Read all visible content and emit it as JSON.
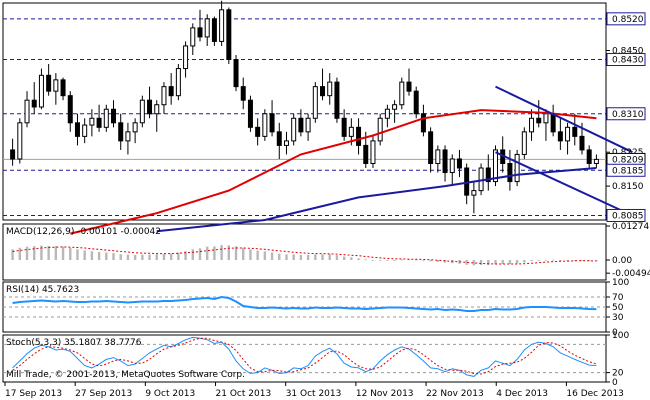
{
  "chart_data": [
    {
      "type": "candlestick",
      "price_labels": [
        "0.8520",
        "0.8450",
        "0.8430",
        "0.8310",
        "0.8225",
        "0.8209",
        "0.8185",
        "0.8150",
        "0.8085"
      ],
      "level_lines": [
        0.852,
        0.843,
        0.831,
        0.8185,
        0.8085
      ],
      "current_price": 0.8209,
      "ylim": [
        0.8075,
        0.8555
      ],
      "date_labels": [
        "17 Sep 2013",
        "27 Sep 2013",
        "9 Oct 2013",
        "21 Oct 2013",
        "31 Oct 2013",
        "12 Nov 2013",
        "22 Nov 2013",
        "4 Dec 2013",
        "16 Dec 2013"
      ],
      "candles": [
        [
          0.823,
          0.8255,
          0.8195,
          0.821
        ],
        [
          0.821,
          0.83,
          0.82,
          0.829
        ],
        [
          0.829,
          0.836,
          0.828,
          0.834
        ],
        [
          0.834,
          0.838,
          0.831,
          0.8325
        ],
        [
          0.8325,
          0.841,
          0.832,
          0.8395
        ],
        [
          0.8395,
          0.842,
          0.835,
          0.836
        ],
        [
          0.836,
          0.84,
          0.833,
          0.8385
        ],
        [
          0.8385,
          0.839,
          0.834,
          0.835
        ],
        [
          0.835,
          0.836,
          0.827,
          0.829
        ],
        [
          0.829,
          0.831,
          0.824,
          0.826
        ],
        [
          0.826,
          0.83,
          0.8245,
          0.8285
        ],
        [
          0.8285,
          0.832,
          0.826,
          0.83
        ],
        [
          0.83,
          0.833,
          0.827,
          0.828
        ],
        [
          0.828,
          0.833,
          0.827,
          0.832
        ],
        [
          0.832,
          0.834,
          0.828,
          0.829
        ],
        [
          0.829,
          0.831,
          0.823,
          0.825
        ],
        [
          0.825,
          0.829,
          0.822,
          0.827
        ],
        [
          0.827,
          0.83,
          0.8245,
          0.829
        ],
        [
          0.829,
          0.835,
          0.828,
          0.834
        ],
        [
          0.834,
          0.837,
          0.83,
          0.831
        ],
        [
          0.831,
          0.834,
          0.827,
          0.833
        ],
        [
          0.833,
          0.838,
          0.831,
          0.837
        ],
        [
          0.837,
          0.84,
          0.833,
          0.835
        ],
        [
          0.835,
          0.842,
          0.834,
          0.841
        ],
        [
          0.841,
          0.847,
          0.839,
          0.846
        ],
        [
          0.846,
          0.851,
          0.844,
          0.85
        ],
        [
          0.85,
          0.854,
          0.847,
          0.848
        ],
        [
          0.848,
          0.853,
          0.846,
          0.852
        ],
        [
          0.852,
          0.8525,
          0.846,
          0.847
        ],
        [
          0.847,
          0.856,
          0.846,
          0.854
        ],
        [
          0.854,
          0.8545,
          0.842,
          0.843
        ],
        [
          0.843,
          0.844,
          0.836,
          0.837
        ],
        [
          0.837,
          0.839,
          0.832,
          0.834
        ],
        [
          0.834,
          0.835,
          0.827,
          0.828
        ],
        [
          0.828,
          0.83,
          0.824,
          0.826
        ],
        [
          0.826,
          0.832,
          0.825,
          0.831
        ],
        [
          0.831,
          0.834,
          0.826,
          0.827
        ],
        [
          0.827,
          0.829,
          0.821,
          0.824
        ],
        [
          0.824,
          0.827,
          0.822,
          0.825
        ],
        [
          0.825,
          0.831,
          0.824,
          0.83
        ],
        [
          0.83,
          0.832,
          0.826,
          0.827
        ],
        [
          0.827,
          0.831,
          0.825,
          0.83
        ],
        [
          0.83,
          0.838,
          0.829,
          0.837
        ],
        [
          0.837,
          0.841,
          0.834,
          0.835
        ],
        [
          0.835,
          0.84,
          0.833,
          0.838
        ],
        [
          0.838,
          0.839,
          0.829,
          0.83
        ],
        [
          0.83,
          0.832,
          0.825,
          0.826
        ],
        [
          0.826,
          0.83,
          0.824,
          0.828
        ],
        [
          0.828,
          0.83,
          0.822,
          0.824
        ],
        [
          0.824,
          0.827,
          0.819,
          0.82
        ],
        [
          0.82,
          0.826,
          0.819,
          0.825
        ],
        [
          0.825,
          0.831,
          0.824,
          0.83
        ],
        [
          0.83,
          0.833,
          0.828,
          0.832
        ],
        [
          0.832,
          0.834,
          0.829,
          0.833
        ],
        [
          0.833,
          0.839,
          0.832,
          0.838
        ],
        [
          0.838,
          0.841,
          0.835,
          0.836
        ],
        [
          0.836,
          0.837,
          0.83,
          0.831
        ],
        [
          0.831,
          0.833,
          0.826,
          0.827
        ],
        [
          0.827,
          0.828,
          0.818,
          0.82
        ],
        [
          0.82,
          0.824,
          0.818,
          0.823
        ],
        [
          0.823,
          0.824,
          0.816,
          0.818
        ],
        [
          0.818,
          0.822,
          0.815,
          0.821
        ],
        [
          0.821,
          0.823,
          0.817,
          0.819
        ],
        [
          0.819,
          0.82,
          0.811,
          0.813
        ],
        [
          0.813,
          0.816,
          0.809,
          0.814
        ],
        [
          0.814,
          0.82,
          0.813,
          0.819
        ],
        [
          0.819,
          0.822,
          0.814,
          0.816
        ],
        [
          0.816,
          0.824,
          0.815,
          0.823
        ],
        [
          0.823,
          0.826,
          0.818,
          0.82
        ],
        [
          0.82,
          0.823,
          0.814,
          0.816
        ],
        [
          0.816,
          0.823,
          0.815,
          0.822
        ],
        [
          0.822,
          0.828,
          0.821,
          0.827
        ],
        [
          0.827,
          0.832,
          0.825,
          0.83
        ],
        [
          0.83,
          0.834,
          0.828,
          0.829
        ],
        [
          0.829,
          0.832,
          0.825,
          0.831
        ],
        [
          0.831,
          0.833,
          0.826,
          0.827
        ],
        [
          0.827,
          0.83,
          0.823,
          0.825
        ],
        [
          0.825,
          0.829,
          0.822,
          0.828
        ],
        [
          0.828,
          0.831,
          0.824,
          0.826
        ],
        [
          0.826,
          0.829,
          0.822,
          0.823
        ],
        [
          0.823,
          0.824,
          0.819,
          0.82
        ],
        [
          0.82,
          0.822,
          0.819,
          0.8209
        ]
      ],
      "moving_averages": [
        {
          "color": "#e00000",
          "points": [
            [
              8,
              0.8045
            ],
            [
              20,
              0.809
            ],
            [
              30,
              0.814
            ],
            [
              40,
              0.822
            ],
            [
              50,
              0.8262
            ],
            [
              57,
              0.83
            ],
            [
              65,
              0.8318
            ],
            [
              74,
              0.8312
            ],
            [
              81,
              0.83
            ]
          ]
        },
        {
          "color": "#1a1aa0",
          "points": [
            [
              20,
              0.805
            ],
            [
              35,
              0.8075
            ],
            [
              48,
              0.8125
            ],
            [
              60,
              0.815
            ],
            [
              70,
              0.8175
            ],
            [
              81,
              0.819
            ]
          ]
        }
      ],
      "channel_lines": [
        {
          "color": "#1a1aa0",
          "points": [
            [
              67,
              0.837
            ],
            [
              86,
              0.8225
            ]
          ]
        },
        {
          "color": "#1a1aa0",
          "points": [
            [
              67,
              0.8225
            ],
            [
              86,
              0.8085
            ]
          ]
        }
      ]
    },
    {
      "type": "bar",
      "title": "MACD(12,26,9) -0.00101 -0.00042",
      "ylim": [
        -0.0075,
        0.0135
      ],
      "y_labels": [
        "0.01274",
        "0.00",
        "-0.00494"
      ],
      "values": [
        0.004,
        0.0046,
        0.005,
        0.0052,
        0.0054,
        0.0053,
        0.0052,
        0.005,
        0.0045,
        0.004,
        0.0036,
        0.0033,
        0.003,
        0.0028,
        0.0026,
        0.0022,
        0.002,
        0.0019,
        0.002,
        0.002,
        0.0021,
        0.0023,
        0.0024,
        0.0028,
        0.0033,
        0.004,
        0.0044,
        0.005,
        0.0051,
        0.0056,
        0.0055,
        0.0051,
        0.0046,
        0.004,
        0.0035,
        0.0032,
        0.0028,
        0.0024,
        0.0021,
        0.0021,
        0.0019,
        0.0019,
        0.0021,
        0.0021,
        0.0022,
        0.0018,
        0.0013,
        0.001,
        0.0006,
        0.0002,
        0.0,
        -0.0001,
        -0.0001,
        -0.0001,
        0.0002,
        0.0003,
        0.0002,
        -0.0001,
        -0.0005,
        -0.0007,
        -0.001,
        -0.0012,
        -0.0014,
        -0.0018,
        -0.002,
        -0.0019,
        -0.0019,
        -0.0016,
        -0.0015,
        -0.0015,
        -0.0013,
        -0.0009,
        -0.0004,
        -0.0001,
        0.0001,
        0.0001,
        0.0,
        0.0,
        -0.0001,
        -0.0002,
        -0.0004,
        -0.0004
      ],
      "signal": [
        0.0032,
        0.0036,
        0.0039,
        0.0042,
        0.0045,
        0.0047,
        0.0048,
        0.0049,
        0.0048,
        0.0047,
        0.0045,
        0.0042,
        0.004,
        0.0037,
        0.0035,
        0.0032,
        0.003,
        0.0027,
        0.0026,
        0.0025,
        0.0024,
        0.0024,
        0.0024,
        0.0025,
        0.0027,
        0.0029,
        0.0032,
        0.0035,
        0.0038,
        0.0041,
        0.0044,
        0.0045,
        0.0045,
        0.0044,
        0.0042,
        0.004,
        0.0037,
        0.0034,
        0.0032,
        0.0029,
        0.0027,
        0.0025,
        0.0024,
        0.0024,
        0.0023,
        0.0022,
        0.002,
        0.0018,
        0.0016,
        0.0013,
        0.001,
        0.0008,
        0.0006,
        0.0004,
        0.0004,
        0.0003,
        0.0003,
        0.0002,
        0.0001,
        -0.0001,
        -0.0003,
        -0.0005,
        -0.0007,
        -0.0009,
        -0.0011,
        -0.0013,
        -0.0014,
        -0.0015,
        -0.0015,
        -0.0015,
        -0.0015,
        -0.0014,
        -0.0012,
        -0.001,
        -0.0008,
        -0.0006,
        -0.0005,
        -0.0004,
        -0.0003,
        -0.0003,
        -0.0003,
        -0.0004
      ]
    },
    {
      "type": "line",
      "title": "RSI(14) 45.7623",
      "ylim": [
        0,
        100
      ],
      "y_labels": [
        "100",
        "70",
        "50",
        "30",
        "0"
      ],
      "levels": [
        70,
        50,
        30
      ],
      "values": [
        58,
        60,
        61,
        62,
        63,
        62,
        61,
        62,
        61,
        60,
        60,
        61,
        61,
        62,
        61,
        60,
        59,
        60,
        61,
        61,
        61,
        62,
        62,
        63,
        64,
        66,
        67,
        68,
        66,
        70,
        68,
        61,
        52,
        50,
        48,
        48,
        49,
        48,
        47,
        48,
        47,
        47,
        49,
        48,
        48,
        49,
        48,
        47,
        47,
        46,
        47,
        48,
        49,
        49,
        49,
        48,
        47,
        46,
        45,
        46,
        44,
        45,
        44,
        42,
        42,
        44,
        44,
        46,
        45,
        45,
        46,
        49,
        50,
        50,
        50,
        49,
        48,
        48,
        48,
        47,
        46,
        45.76
      ]
    },
    {
      "type": "line",
      "title": "Stoch(5,3,3) 35.1807 38.7776",
      "ylim": [
        0,
        100
      ],
      "y_labels": [
        "100",
        "20",
        "0"
      ],
      "levels": [
        80,
        20
      ],
      "series": [
        {
          "color": "#1e90ff",
          "values": [
            30,
            45,
            60,
            72,
            78,
            75,
            68,
            70,
            65,
            50,
            35,
            30,
            38,
            48,
            52,
            45,
            35,
            38,
            50,
            62,
            70,
            78,
            75,
            82,
            90,
            95,
            93,
            90,
            82,
            85,
            70,
            45,
            28,
            18,
            20,
            30,
            25,
            18,
            20,
            30,
            28,
            35,
            55,
            65,
            72,
            60,
            40,
            32,
            30,
            22,
            28,
            45,
            58,
            68,
            75,
            70,
            58,
            45,
            30,
            28,
            22,
            28,
            25,
            15,
            12,
            25,
            30,
            45,
            40,
            35,
            48,
            68,
            80,
            85,
            82,
            75,
            62,
            55,
            48,
            42,
            36,
            35.18
          ]
        },
        {
          "color": "#e00000",
          "values": [
            25,
            35,
            48,
            60,
            70,
            75,
            74,
            72,
            68,
            62,
            50,
            38,
            34,
            38,
            45,
            48,
            45,
            40,
            40,
            48,
            60,
            70,
            75,
            78,
            83,
            89,
            93,
            93,
            88,
            85,
            80,
            67,
            48,
            30,
            22,
            22,
            25,
            24,
            21,
            22,
            26,
            30,
            40,
            52,
            64,
            66,
            58,
            45,
            34,
            28,
            27,
            32,
            44,
            57,
            68,
            72,
            68,
            58,
            46,
            35,
            27,
            25,
            25,
            23,
            18,
            17,
            22,
            33,
            38,
            40,
            42,
            50,
            63,
            78,
            84,
            83,
            77,
            66,
            57,
            50,
            43,
            38.78
          ]
        }
      ]
    }
  ],
  "copyright": "Mill Trade, © 2001-2013, MetaQuotes Software Corp."
}
